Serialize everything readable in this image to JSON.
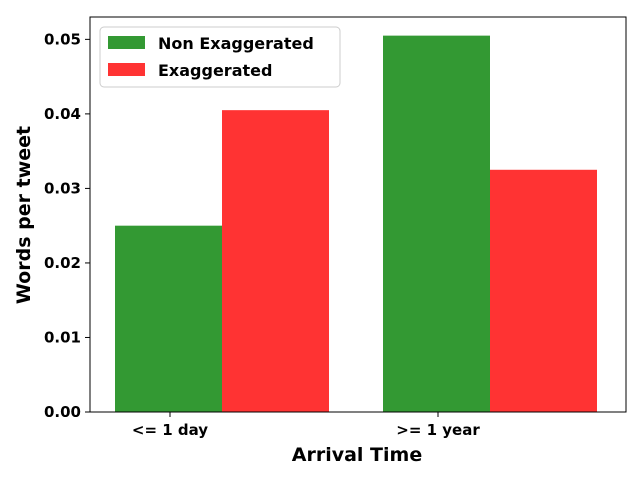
{
  "chart_data": {
    "type": "bar",
    "categories": [
      "<= 1 day",
      ">= 1 year"
    ],
    "series": [
      {
        "name": "Non Exaggerated",
        "values": [
          0.025,
          0.0505
        ],
        "color": "#339933"
      },
      {
        "name": "Exaggerated",
        "values": [
          0.0405,
          0.0325
        ],
        "color": "#ff3333"
      }
    ],
    "xlabel": "Arrival Time",
    "ylabel": "Words per tweet",
    "ylim": [
      0,
      0.053
    ],
    "yticks": [
      "0.00",
      "0.01",
      "0.02",
      "0.03",
      "0.04",
      "0.05"
    ],
    "ytick_values": [
      0,
      0.01,
      0.02,
      0.03,
      0.04,
      0.05
    ],
    "grid": false,
    "legend_position": "top-left"
  }
}
